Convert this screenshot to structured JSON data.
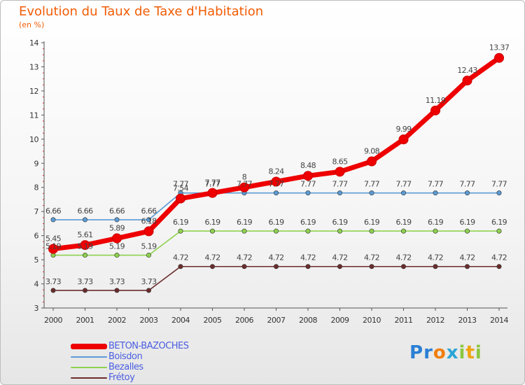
{
  "header": {
    "title": "Evolution du Taux de Taxe d'Habitation",
    "subtitle": "(en %)"
  },
  "brand": {
    "text": "Proxiti",
    "letters": [
      "P",
      "r",
      "o",
      "x",
      "i",
      "t",
      "i"
    ],
    "letter_colors": [
      "#2a7fd4",
      "#2a7fd4",
      "#f07e0e",
      "#2aa5d6",
      "#8cc63f",
      "#f0a30e",
      "#8cc63f"
    ]
  },
  "chart_data": {
    "type": "line",
    "title": "Evolution du Taux de Taxe d'Habitation",
    "ylabel": "(en %)",
    "xlabel": "",
    "x": [
      "2000",
      "2001",
      "2002",
      "2003",
      "2004",
      "2005",
      "2006",
      "2007",
      "2008",
      "2009",
      "2010",
      "2011",
      "2012",
      "2013",
      "2014"
    ],
    "ylim": [
      3,
      14
    ],
    "yticks": [
      3,
      4,
      5,
      6,
      7,
      8,
      9,
      10,
      11,
      12,
      13,
      14
    ],
    "grid": false,
    "legend_position": "bottom-left",
    "series": [
      {
        "name": "BETON-BAZOCHES",
        "color": "#ee0000",
        "emphasis": true,
        "values": [
          5.45,
          5.61,
          5.89,
          6.18,
          7.54,
          7.77,
          8.0,
          8.24,
          8.48,
          8.65,
          9.08,
          9.99,
          11.19,
          12.43,
          13.37
        ],
        "labels": [
          "5.45",
          "5.61",
          "5.89",
          "6.18",
          "7.54",
          "7.77",
          "8",
          "8.24",
          "8.48",
          "8.65",
          "9.08",
          "9.99",
          "11.19",
          "12.43",
          "13.37"
        ]
      },
      {
        "name": "Boisdon",
        "color": "#5b9bd5",
        "emphasis": false,
        "values": [
          6.66,
          6.66,
          6.66,
          6.66,
          7.77,
          7.77,
          7.77,
          7.77,
          7.77,
          7.77,
          7.77,
          7.77,
          7.77,
          7.77,
          7.77
        ],
        "labels": [
          "6.66",
          "6.66",
          "6.66",
          "6.66",
          "7.77",
          "7.77",
          "7.77",
          "7.77",
          "7.77",
          "7.77",
          "7.77",
          "7.77",
          "7.77",
          "7.77",
          "7.77"
        ]
      },
      {
        "name": "Bezalles",
        "color": "#8fd14f",
        "emphasis": false,
        "values": [
          5.19,
          5.19,
          5.19,
          5.19,
          6.19,
          6.19,
          6.19,
          6.19,
          6.19,
          6.19,
          6.19,
          6.19,
          6.19,
          6.19,
          6.19
        ],
        "labels": [
          "5.19",
          "5.19",
          "5.19",
          "5.19",
          "6.19",
          "6.19",
          "6.19",
          "6.19",
          "6.19",
          "6.19",
          "6.19",
          "6.19",
          "6.19",
          "6.19",
          "6.19"
        ]
      },
      {
        "name": "Frétoy",
        "color": "#6b2c2c",
        "emphasis": false,
        "values": [
          3.73,
          3.73,
          3.73,
          3.73,
          4.72,
          4.72,
          4.72,
          4.72,
          4.72,
          4.72,
          4.72,
          4.72,
          4.72,
          4.72,
          4.72
        ],
        "labels": [
          "3.73",
          "3.73",
          "3.73",
          "3.73",
          "4.72",
          "4.72",
          "4.72",
          "4.72",
          "4.72",
          "4.72",
          "4.72",
          "4.72",
          "4.72",
          "4.72",
          "4.72"
        ]
      }
    ]
  }
}
